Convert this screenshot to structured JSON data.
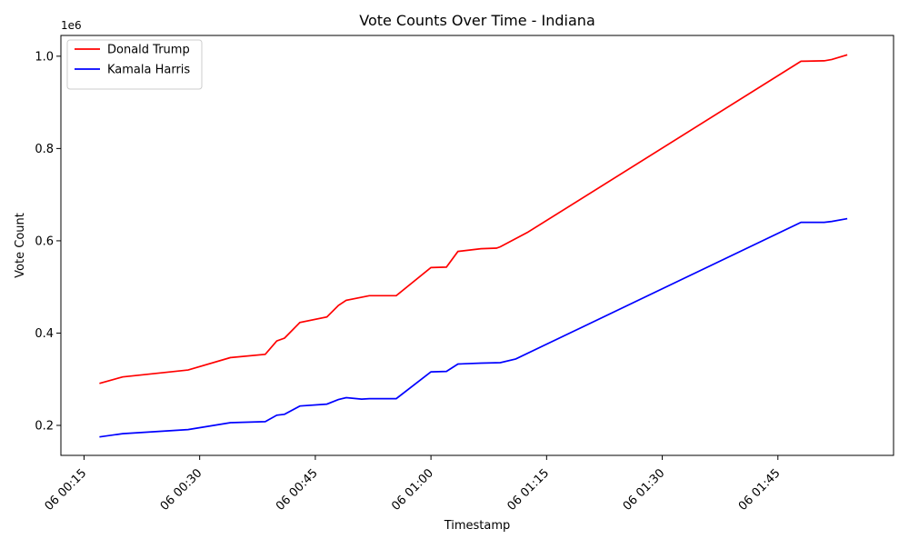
{
  "chart_data": {
    "type": "line",
    "title": "Vote Counts Over Time - Indiana",
    "xlabel": "Timestamp",
    "ylabel": "Vote Count",
    "y_offset_label": "1e6",
    "x_ticks": [
      {
        "value": "00:15",
        "label": "06 00:15"
      },
      {
        "value": "00:30",
        "label": "06 00:30"
      },
      {
        "value": "00:45",
        "label": "06 00:45"
      },
      {
        "value": "01:00",
        "label": "06 01:00"
      },
      {
        "value": "01:15",
        "label": "06 01:15"
      },
      {
        "value": "01:30",
        "label": "06 01:30"
      },
      {
        "value": "01:45",
        "label": "06 01:45"
      }
    ],
    "y_ticks": [
      {
        "value": 200000,
        "label": "0.2"
      },
      {
        "value": 400000,
        "label": "0.4"
      },
      {
        "value": 600000,
        "label": "0.6"
      },
      {
        "value": 800000,
        "label": "0.8"
      },
      {
        "value": 1000000,
        "label": "1.0"
      }
    ],
    "xlim": [
      "00:12",
      "02:00"
    ],
    "ylim": [
      135000,
      1045000
    ],
    "grid": false,
    "legend_position": "top-left",
    "series": [
      {
        "name": "Donald Trump",
        "color": "#ff0000",
        "points": [
          {
            "x": "00:17",
            "y": 291000
          },
          {
            "x": "00:20",
            "y": 305000
          },
          {
            "x": "00:28.5",
            "y": 320000
          },
          {
            "x": "00:34",
            "y": 347000
          },
          {
            "x": "00:38.5",
            "y": 354000
          },
          {
            "x": "00:40",
            "y": 383000
          },
          {
            "x": "00:41",
            "y": 389000
          },
          {
            "x": "00:43",
            "y": 423000
          },
          {
            "x": "00:46.5",
            "y": 435000
          },
          {
            "x": "00:48",
            "y": 460000
          },
          {
            "x": "00:49",
            "y": 471000
          },
          {
            "x": "00:52",
            "y": 481000
          },
          {
            "x": "00:55.5",
            "y": 481000
          },
          {
            "x": "01:00",
            "y": 542000
          },
          {
            "x": "01:02",
            "y": 543000
          },
          {
            "x": "01:03.5",
            "y": 577000
          },
          {
            "x": "01:06.5",
            "y": 583000
          },
          {
            "x": "01:08.5",
            "y": 584000
          },
          {
            "x": "01:09",
            "y": 587000
          },
          {
            "x": "01:12.5",
            "y": 618000
          },
          {
            "x": "01:48",
            "y": 989000
          },
          {
            "x": "01:51",
            "y": 990000
          },
          {
            "x": "01:52",
            "y": 993000
          },
          {
            "x": "01:54",
            "y": 1003000
          }
        ]
      },
      {
        "name": "Kamala Harris",
        "color": "#0000ff",
        "points": [
          {
            "x": "00:17",
            "y": 175000
          },
          {
            "x": "00:20",
            "y": 182000
          },
          {
            "x": "00:28.5",
            "y": 191000
          },
          {
            "x": "00:34",
            "y": 206000
          },
          {
            "x": "00:38.5",
            "y": 208000
          },
          {
            "x": "00:40",
            "y": 222000
          },
          {
            "x": "00:41",
            "y": 224000
          },
          {
            "x": "00:43",
            "y": 242000
          },
          {
            "x": "00:46.5",
            "y": 246000
          },
          {
            "x": "00:48",
            "y": 256000
          },
          {
            "x": "00:49",
            "y": 260000
          },
          {
            "x": "00:51",
            "y": 257000
          },
          {
            "x": "00:52",
            "y": 258000
          },
          {
            "x": "00:55.5",
            "y": 258000
          },
          {
            "x": "01:00",
            "y": 316000
          },
          {
            "x": "01:02",
            "y": 317000
          },
          {
            "x": "01:03.5",
            "y": 333000
          },
          {
            "x": "01:06.5",
            "y": 335000
          },
          {
            "x": "01:09",
            "y": 336000
          },
          {
            "x": "01:11",
            "y": 344000
          },
          {
            "x": "01:48",
            "y": 640000
          },
          {
            "x": "01:51",
            "y": 640000
          },
          {
            "x": "01:52",
            "y": 642000
          },
          {
            "x": "01:54",
            "y": 648000
          }
        ]
      }
    ]
  }
}
